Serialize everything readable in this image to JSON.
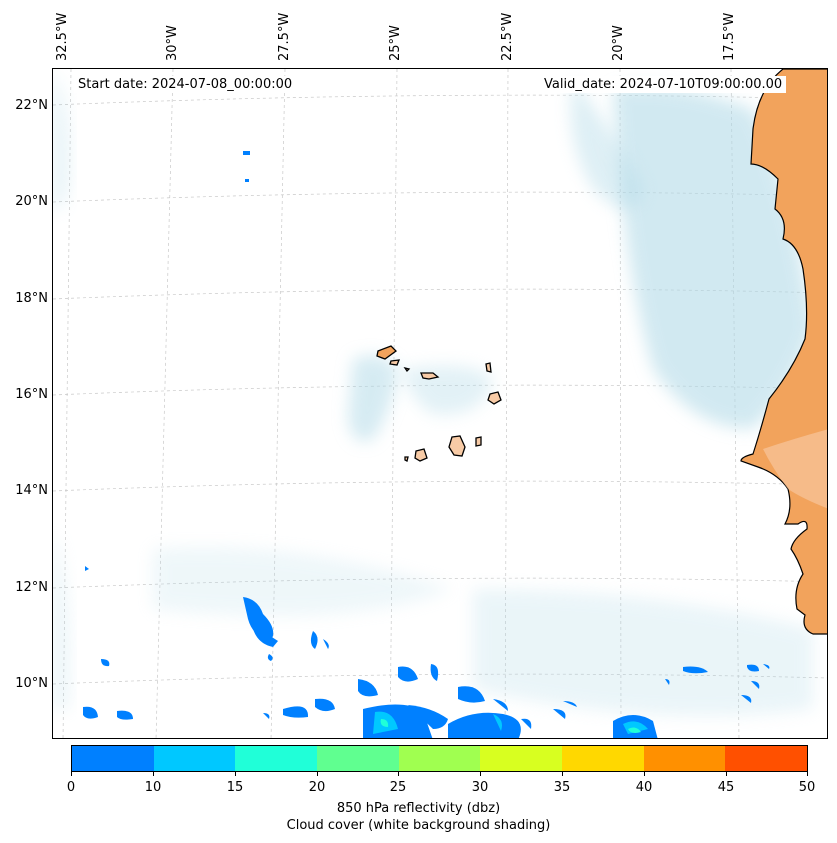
{
  "map": {
    "start_date": "Start date: 2024-07-08_00:00:00",
    "valid_date": "Valid_date: 2024-07-10T09:00:00.00",
    "longitude_labels": [
      "32.5°W",
      "30°W",
      "27.5°W",
      "25°W",
      "22.5°W",
      "20°W",
      "17.5°W"
    ],
    "latitude_labels": [
      "22°N",
      "20°N",
      "18°N",
      "16°N",
      "14°N",
      "12°N",
      "10°N"
    ],
    "colors": {
      "land_africa": "#f2a35c",
      "land_islands": "#f8cba6",
      "cloud_shading": "#add8e6"
    }
  },
  "colorbar": {
    "ticks": [
      "0",
      "10",
      "15",
      "20",
      "25",
      "30",
      "35",
      "40",
      "45",
      "50"
    ],
    "colors": [
      "#0080ff",
      "#00c8ff",
      "#20ffd8",
      "#60ff90",
      "#a0ff50",
      "#d8ff20",
      "#ffd800",
      "#ff9000",
      "#ff5000"
    ],
    "label_line1": "850 hPa reflectivity (dbz)",
    "label_line2": "Cloud cover (white background shading)"
  }
}
